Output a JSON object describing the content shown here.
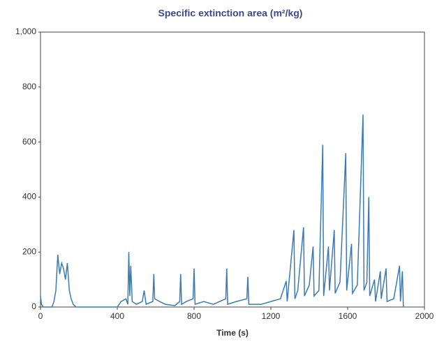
{
  "chart_data": {
    "type": "line",
    "title": "Specific extinction area (m²/kg)",
    "x_label": "Time (s)",
    "x": [
      0,
      5,
      15,
      60,
      70,
      80,
      90,
      100,
      110,
      120,
      130,
      140,
      150,
      160,
      170,
      185,
      400,
      420,
      445,
      455,
      460,
      465,
      470,
      478,
      500,
      530,
      540,
      550,
      585,
      590,
      595,
      620,
      650,
      700,
      725,
      730,
      735,
      760,
      795,
      800,
      805,
      850,
      900,
      965,
      970,
      975,
      1020,
      1075,
      1080,
      1085,
      1150,
      1200,
      1250,
      1280,
      1285,
      1320,
      1325,
      1340,
      1370,
      1375,
      1400,
      1420,
      1425,
      1450,
      1470,
      1475,
      1500,
      1505,
      1530,
      1535,
      1560,
      1590,
      1595,
      1620,
      1625,
      1650,
      1680,
      1685,
      1700,
      1710,
      1715,
      1740,
      1745,
      1770,
      1775,
      1800,
      1805,
      1840,
      1870,
      1875,
      1885,
      1890
    ],
    "series": [
      {
        "name": "Specific extinction area",
        "color": "#3a7ab5",
        "values": [
          40,
          10,
          0,
          0,
          20,
          60,
          190,
          120,
          160,
          140,
          100,
          160,
          60,
          30,
          10,
          0,
          0,
          20,
          30,
          10,
          200,
          40,
          150,
          20,
          10,
          20,
          60,
          10,
          20,
          120,
          30,
          20,
          10,
          5,
          20,
          120,
          10,
          20,
          30,
          140,
          10,
          20,
          10,
          30,
          140,
          10,
          20,
          30,
          110,
          10,
          10,
          20,
          30,
          95,
          20,
          280,
          30,
          60,
          290,
          40,
          80,
          220,
          40,
          60,
          590,
          40,
          220,
          60,
          280,
          50,
          90,
          560,
          60,
          230,
          50,
          80,
          700,
          60,
          90,
          400,
          40,
          100,
          20,
          130,
          30,
          140,
          20,
          30,
          150,
          20,
          130,
          0
        ]
      }
    ],
    "xlim": [
      0,
      2000
    ],
    "xticks": [
      0,
      400,
      800,
      1200,
      1600,
      2000
    ],
    "ylim": [
      0,
      1000
    ],
    "yticks": [
      0,
      200,
      400,
      600,
      800,
      {
        "value": 1000,
        "label": "1,000"
      }
    ]
  }
}
